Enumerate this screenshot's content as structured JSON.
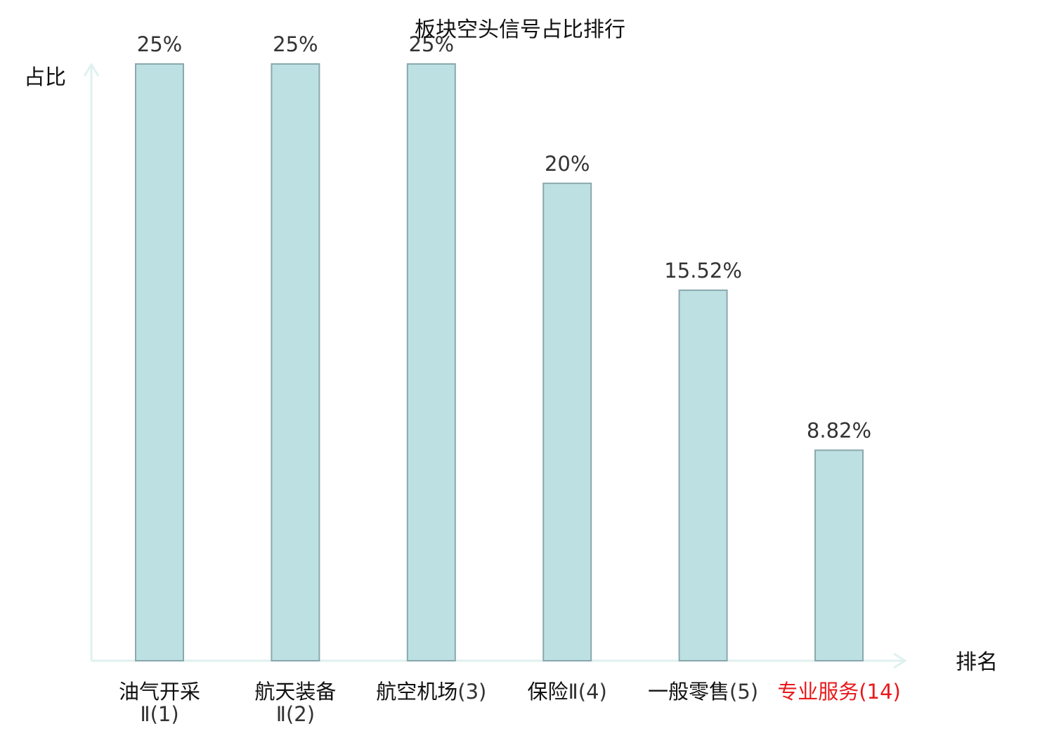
{
  "chart_data": {
    "type": "bar",
    "title": "板块空头信号占比排行",
    "ylabel": "占比",
    "xlabel": "排名",
    "ylim": [
      0,
      25
    ],
    "grid": false,
    "colors": {
      "bar_fill": "#bde0e3",
      "bar_stroke": "#8aa8ad",
      "axis": "#dff1ef",
      "highlight": "#e8191c"
    },
    "categories": [
      {
        "line1": "油气开采",
        "line2": "Ⅱ(1)",
        "rank": "",
        "highlight": false
      },
      {
        "line1": "航天装备",
        "line2": "Ⅱ(2)",
        "rank": "",
        "highlight": false
      },
      {
        "line1": "航空机场",
        "line2": "",
        "rank": "(3)",
        "highlight": false
      },
      {
        "line1": "保险",
        "line2": "",
        "rank": "Ⅱ(4)",
        "highlight": false
      },
      {
        "line1": "一般零售",
        "line2": "",
        "rank": "(5)",
        "highlight": false
      },
      {
        "line1": "专业服务",
        "line2": "",
        "rank": "(14)",
        "highlight": true
      }
    ],
    "values": [
      25,
      25,
      25,
      20,
      15.52,
      8.82
    ],
    "value_labels": [
      "25%",
      "25%",
      "25%",
      "20%",
      "15.52%",
      "8.82%"
    ]
  }
}
